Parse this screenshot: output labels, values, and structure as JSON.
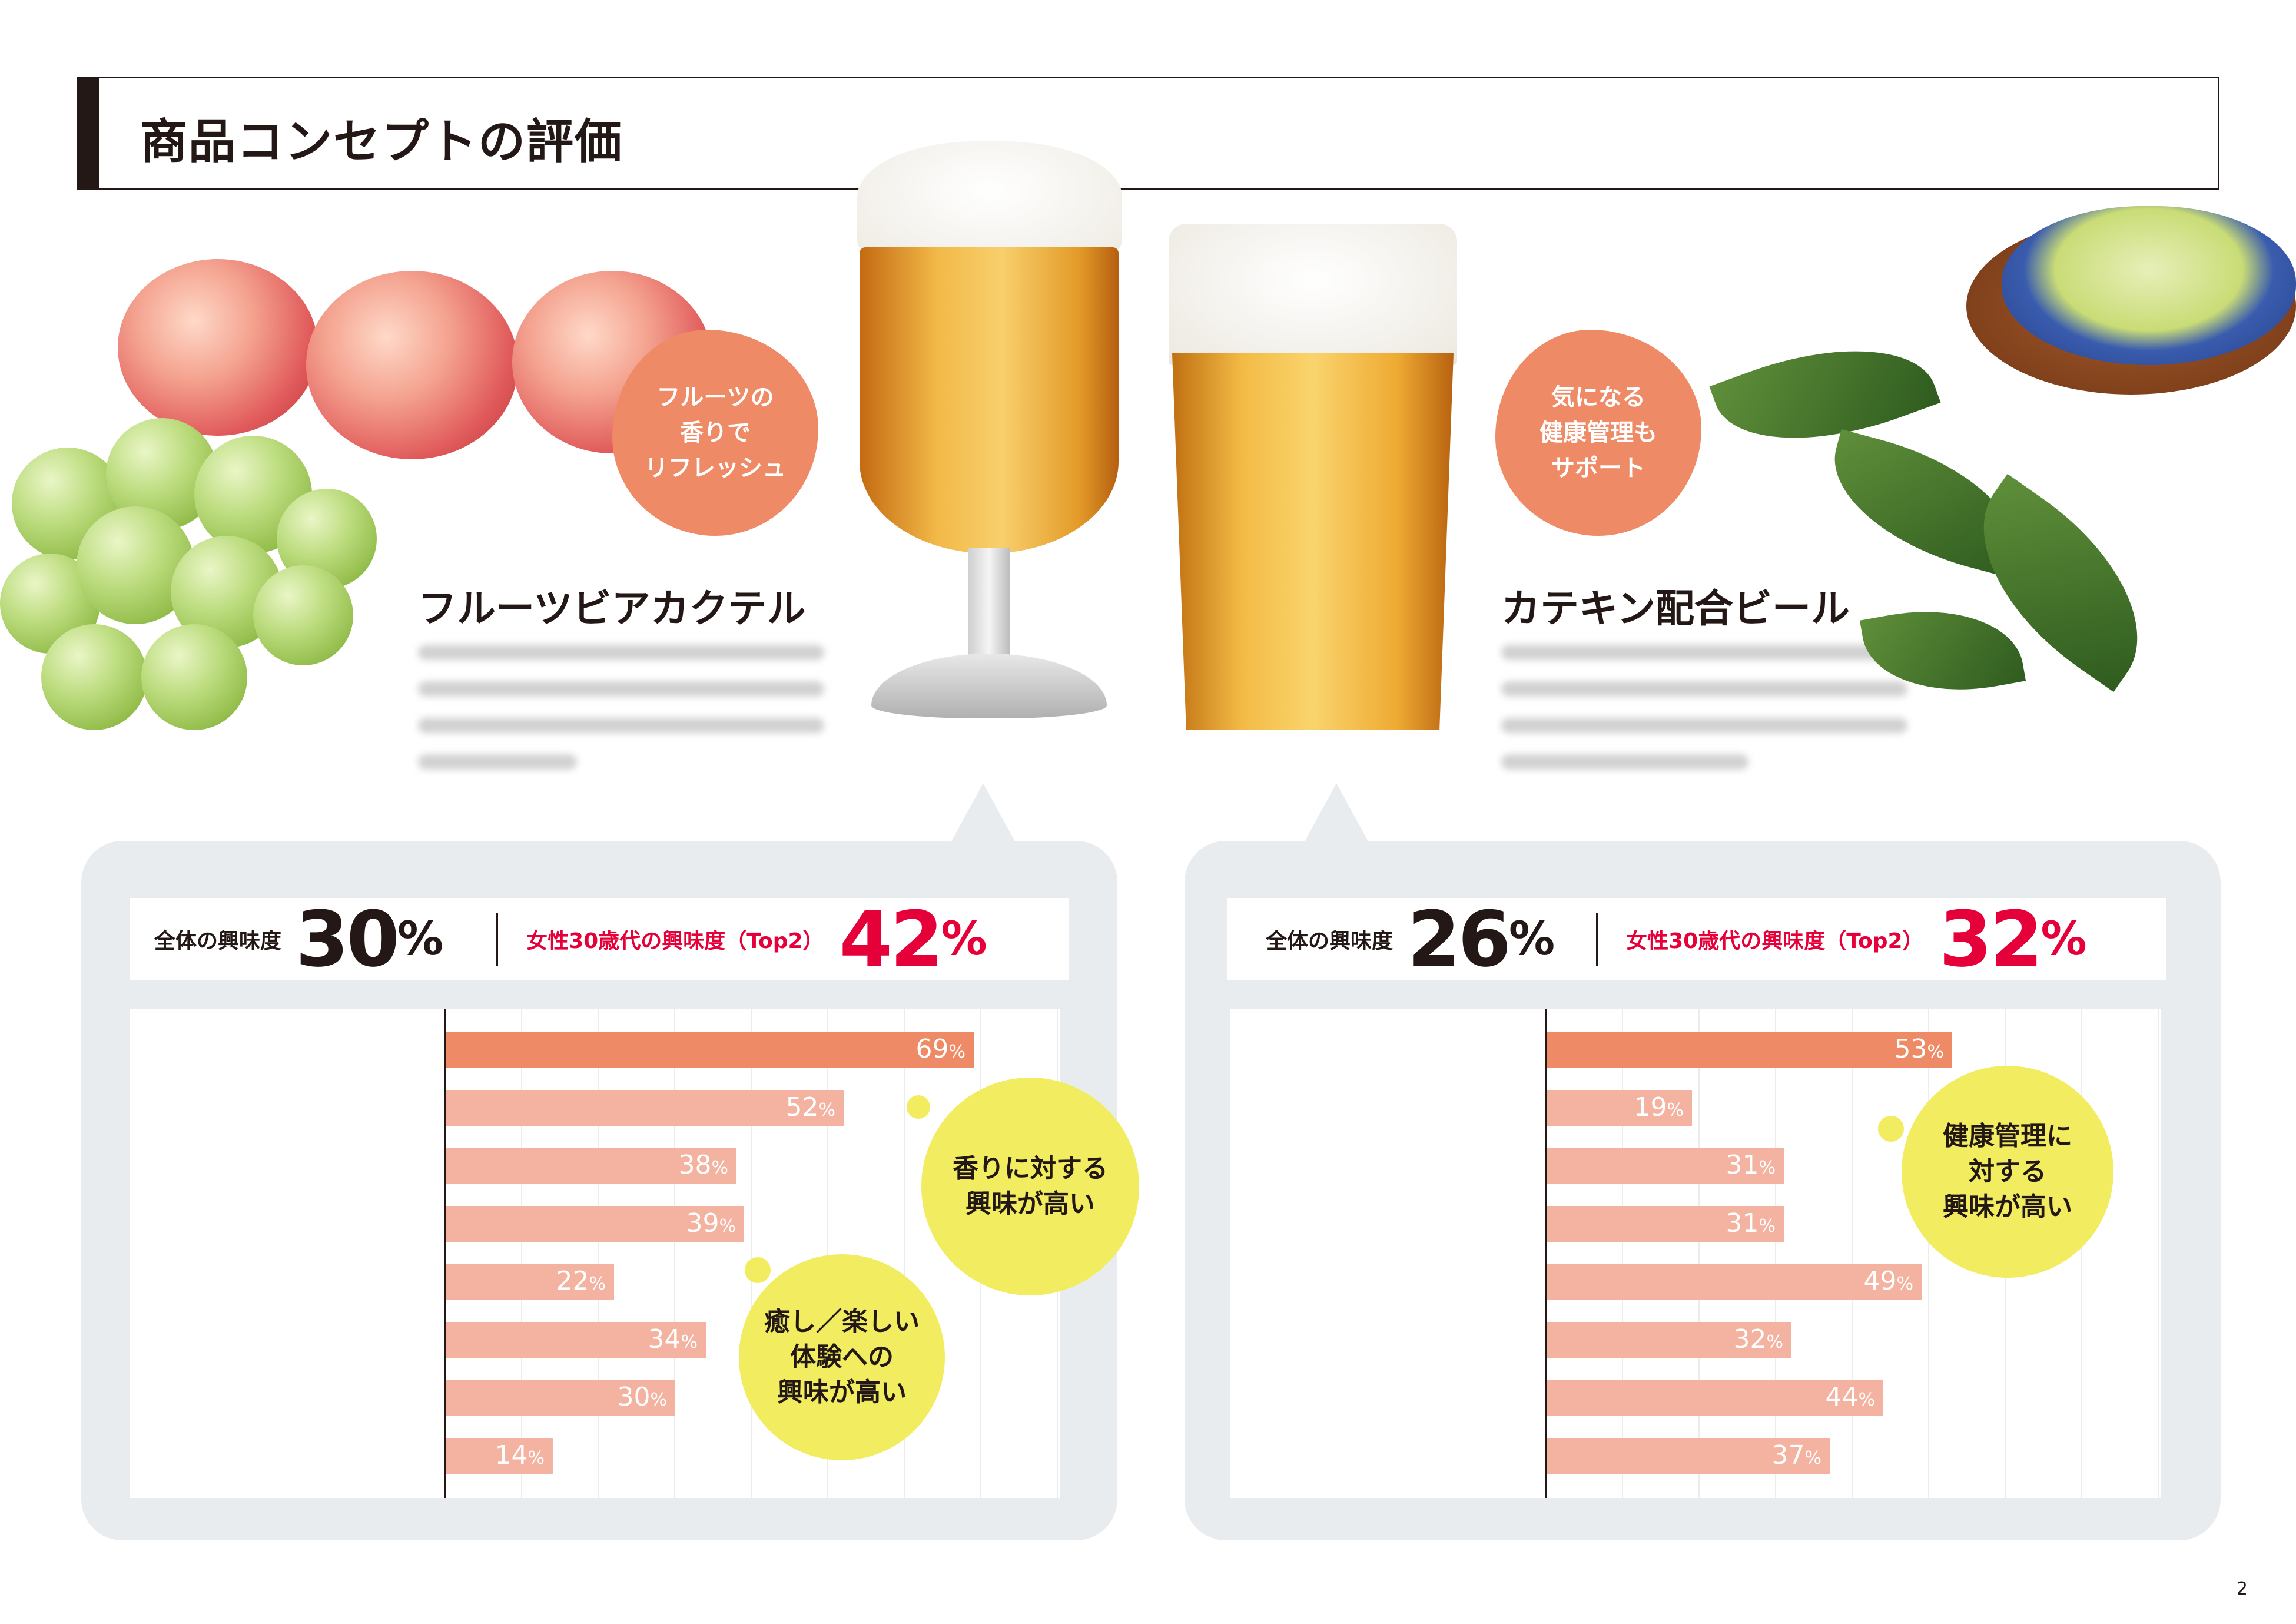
{
  "page": {
    "title": "商品コンセプトの評価",
    "number": "2"
  },
  "products": [
    {
      "name": "フルーツビアカクテル",
      "badge": "フルーツの\n香りで\nリフレッシュ"
    },
    {
      "name": "カテキン配合ビール",
      "badge": "気になる\n健康管理も\nサポート"
    }
  ],
  "panels": [
    {
      "overall_label": "全体の興味度",
      "overall_value": "30",
      "female_label": "女性30歳代の興味度（Top2）",
      "female_value": "42",
      "pct": "%",
      "callouts": [
        "香りに対する\n興味が高い",
        "癒し／楽しい\n体験への\n興味が高い"
      ]
    },
    {
      "overall_label": "全体の興味度",
      "overall_value": "26",
      "female_label": "女性30歳代の興味度（Top2）",
      "female_value": "32",
      "pct": "%",
      "callouts": [
        "健康管理に\n対する\n興味が高い"
      ]
    }
  ],
  "colors": {
    "accent_bar": "#ef8a66",
    "bar": "#f3b3a0",
    "female_red": "#e60039",
    "callout": "#f1ec60",
    "panel_bg": "#e9ecef"
  },
  "chart_data": [
    {
      "type": "bar",
      "orientation": "horizontal",
      "categories": [
        "",
        "",
        "",
        "",
        "",
        "",
        "",
        ""
      ],
      "values": [
        69,
        52,
        38,
        39,
        22,
        34,
        30,
        14
      ],
      "unit": "%",
      "xlim": [
        0,
        80
      ],
      "grid": true
    },
    {
      "type": "bar",
      "orientation": "horizontal",
      "categories": [
        "",
        "",
        "",
        "",
        "",
        "",
        "",
        ""
      ],
      "values": [
        53,
        19,
        31,
        31,
        49,
        32,
        44,
        37
      ],
      "unit": "%",
      "xlim": [
        0,
        80
      ],
      "grid": true
    }
  ]
}
